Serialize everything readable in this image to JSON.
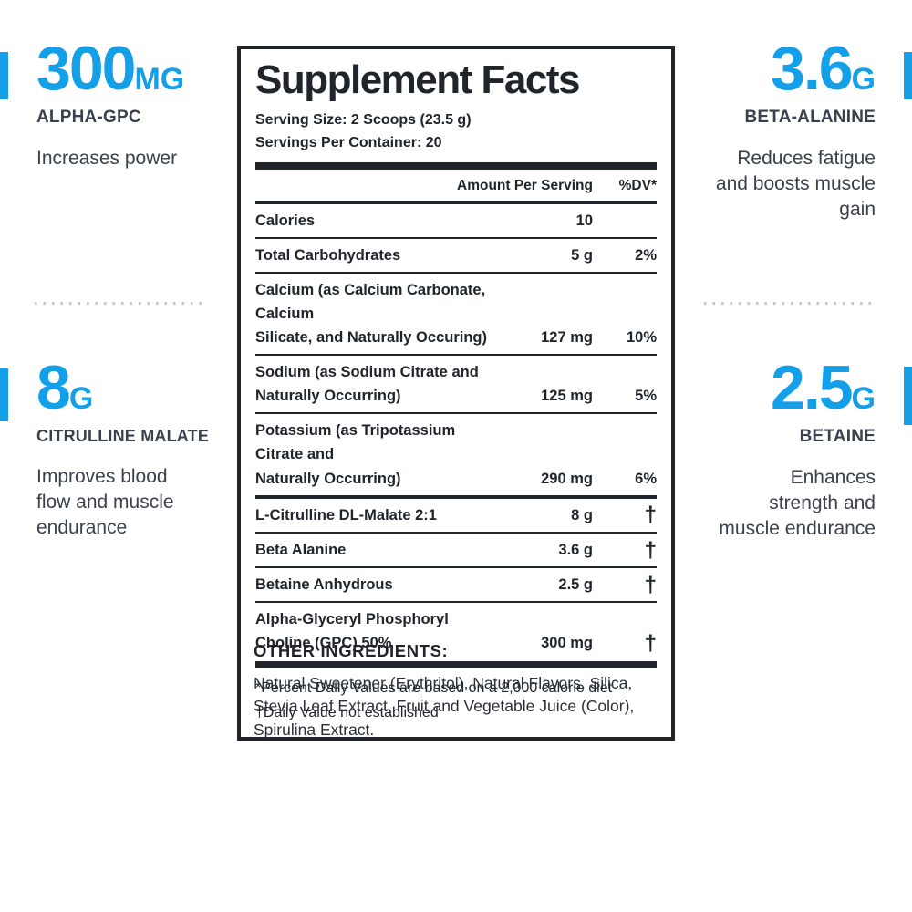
{
  "accent_color": "#14A0E9",
  "callouts": [
    {
      "value": "300",
      "unit": "MG",
      "name": "ALPHA-GPC",
      "description": "Increases power"
    },
    {
      "value": "3.6",
      "unit": "G",
      "name": "BETA-ALANINE",
      "description": "Reduces fatigue\nand boosts muscle\ngain"
    },
    {
      "value": "8",
      "unit": "G",
      "name": "CITRULLINE MALATE",
      "description": "Improves blood\nflow and muscle\nendurance"
    },
    {
      "value": "2.5",
      "unit": "G",
      "name": "BETAINE",
      "description": "Enhances\nstrength and\nmuscle endurance"
    }
  ],
  "panel": {
    "title": "Supplement Facts",
    "serving_size": "Serving Size: 2 Scoops (23.5 g)",
    "servings_per_container": "Servings Per Container: 20",
    "col_amount": "Amount Per Serving",
    "col_dv": "%DV*",
    "rows": [
      {
        "name": "Calories",
        "amount": "10",
        "dv": ""
      },
      {
        "name": "Total Carbohydrates",
        "amount": "5 g",
        "dv": "2%"
      },
      {
        "name": "Calcium (as Calcium Carbonate, Calcium\nSilicate, and Naturally Occuring)",
        "amount": "127 mg",
        "dv": "10%"
      },
      {
        "name": "Sodium (as Sodium Citrate and\nNaturally Occurring)",
        "amount": "125 mg",
        "dv": "5%"
      },
      {
        "name": "Potassium (as Tripotassium Citrate and\nNaturally Occurring)",
        "amount": "290 mg",
        "dv": "6%"
      },
      {
        "name": "L-Citrulline DL-Malate 2:1",
        "amount": "8 g",
        "dv": "†",
        "section_break": true
      },
      {
        "name": "Beta Alanine",
        "amount": "3.6 g",
        "dv": "†"
      },
      {
        "name": "Betaine Anhydrous",
        "amount": "2.5 g",
        "dv": "†"
      },
      {
        "name": "Alpha-Glyceryl Phosphoryl\nCholine (GPC) 50%",
        "amount": "300 mg",
        "dv": "†"
      }
    ],
    "footnotes": [
      "*Percent Daily Values are based on a 2,000 calorie diet",
      "†Daily Value not established"
    ]
  },
  "other_ingredients": {
    "heading": "OTHER INGREDIENTS:",
    "body": "Natural Sweetener (Erythritol), Natural Flavors, Silica, Stevia Leaf Extract, Fruit and Vegetable Juice (Color), Spirulina Extract."
  }
}
